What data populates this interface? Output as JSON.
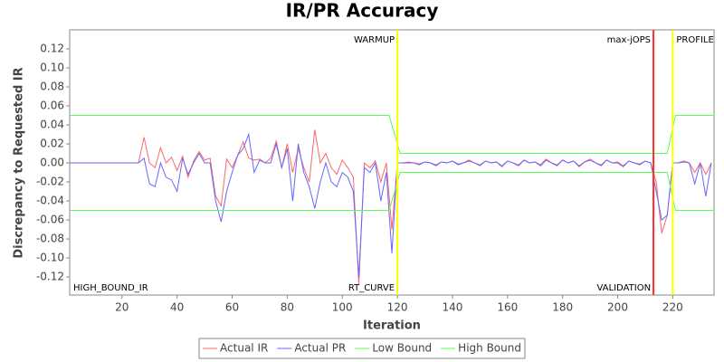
{
  "chart_data": {
    "type": "line",
    "title": "IR/PR Accuracy",
    "x_label": "Iteration",
    "y_label": "Discrepancy to Requested IR",
    "xlim": [
      1,
      235
    ],
    "ylim": [
      -0.139,
      0.14
    ],
    "xticks": [
      20,
      40,
      60,
      80,
      100,
      120,
      140,
      160,
      180,
      200,
      220
    ],
    "yticks": [
      -0.12,
      {
        "value": -0.1,
        "label": "-0.10"
      },
      -0.08,
      -0.06,
      -0.04,
      -0.02,
      {
        "value": 0,
        "label": "0.00"
      },
      0.02,
      0.04,
      0.06,
      0.08,
      {
        "value": 0.1,
        "label": "0.10"
      },
      0.12
    ],
    "legend": "bottom",
    "x": [
      1,
      26,
      28,
      30,
      32,
      34,
      36,
      38,
      40,
      42,
      44,
      46,
      48,
      50,
      52,
      54,
      56,
      58,
      60,
      62,
      64,
      66,
      68,
      70,
      72,
      74,
      76,
      78,
      80,
      82,
      84,
      86,
      88,
      90,
      92,
      94,
      96,
      98,
      100,
      102,
      104,
      106,
      108,
      110,
      112,
      114,
      116,
      118,
      120,
      122,
      124,
      126,
      128,
      130,
      132,
      134,
      136,
      138,
      140,
      142,
      144,
      146,
      148,
      150,
      152,
      154,
      156,
      158,
      160,
      162,
      164,
      166,
      168,
      170,
      172,
      174,
      176,
      178,
      180,
      182,
      184,
      186,
      188,
      190,
      192,
      194,
      196,
      198,
      200,
      202,
      204,
      206,
      208,
      210,
      212,
      214,
      216,
      218,
      220,
      222,
      224,
      226,
      228,
      230,
      232,
      234
    ],
    "series": [
      {
        "name": "Actual IR",
        "color": "#ff6666",
        "values": [
          0,
          0,
          0.027,
          0,
          -0.005,
          0.016,
          0,
          0.006,
          -0.008,
          0.007,
          -0.015,
          0.002,
          0.012,
          0.003,
          0.005,
          -0.035,
          -0.045,
          0.004,
          -0.005,
          0.008,
          0.022,
          0.005,
          0.003,
          0.004,
          0,
          0.005,
          0.023,
          -0.005,
          0.02,
          -0.01,
          0.015,
          -0.005,
          -0.02,
          0.035,
          0,
          0.01,
          -0.005,
          -0.012,
          0.003,
          -0.005,
          -0.015,
          -0.128,
          0,
          -0.005,
          0.002,
          -0.02,
          0,
          -0.07,
          0,
          0,
          0.001,
          0,
          -0.001,
          0.001,
          0,
          -0.002,
          0.001,
          0,
          0.002,
          -0.001,
          0,
          0.003,
          0,
          -0.002,
          0.002,
          0,
          0.001,
          -0.003,
          0.002,
          0,
          -0.002,
          0.003,
          0,
          0.001,
          -0.002,
          0.004,
          0,
          -0.002,
          0.003,
          0,
          0.002,
          -0.003,
          0.001,
          0.004,
          0,
          -0.002,
          0.003,
          0,
          0.001,
          -0.003,
          0.002,
          0,
          -0.001,
          0.002,
          0,
          -0.02,
          -0.074,
          -0.055,
          0,
          0,
          0.002,
          0,
          -0.01,
          0,
          -0.012,
          0
        ]
      },
      {
        "name": "Actual PR",
        "color": "#6666ff",
        "values": [
          0,
          0,
          0.005,
          -0.022,
          -0.025,
          0,
          -0.015,
          -0.018,
          -0.03,
          0.005,
          -0.012,
          0,
          0.01,
          0,
          0,
          -0.04,
          -0.062,
          -0.03,
          -0.01,
          0.008,
          0.015,
          0.03,
          -0.01,
          0.003,
          0,
          0,
          0.02,
          -0.005,
          0.015,
          -0.04,
          0.02,
          -0.01,
          -0.025,
          -0.048,
          -0.02,
          0,
          -0.02,
          -0.025,
          -0.01,
          -0.015,
          -0.03,
          -0.12,
          -0.005,
          -0.01,
          0,
          -0.04,
          -0.01,
          -0.095,
          0,
          0,
          0,
          0,
          -0.002,
          0.001,
          0,
          -0.003,
          0.001,
          0,
          0.002,
          -0.002,
          0,
          0.002,
          0,
          -0.003,
          0.002,
          0,
          0.001,
          -0.004,
          0.002,
          0,
          -0.003,
          0.003,
          0,
          0.001,
          -0.003,
          0.003,
          0,
          -0.003,
          0.003,
          0,
          0.002,
          -0.004,
          0.001,
          0.003,
          0,
          -0.003,
          0.003,
          0,
          0,
          -0.004,
          0.002,
          0,
          -0.002,
          0.002,
          0,
          -0.03,
          -0.06,
          -0.055,
          0,
          0,
          0.001,
          0,
          -0.022,
          0,
          -0.035,
          0
        ]
      },
      {
        "name": "Low Bound",
        "color": "#55ff55",
        "x": [
          1,
          117,
          121,
          218,
          221,
          235
        ],
        "values": [
          -0.05,
          -0.05,
          -0.01,
          -0.01,
          -0.05,
          -0.05
        ]
      },
      {
        "name": "High Bound",
        "color": "#55ff55",
        "x": [
          1,
          117,
          121,
          218,
          221,
          235
        ],
        "values": [
          0.05,
          0.05,
          0.01,
          0.01,
          0.05,
          0.05
        ]
      }
    ],
    "markers": [
      {
        "x": 1,
        "label": "HIGH_BOUND_IR",
        "place": "bottom"
      },
      {
        "x": 120,
        "color": "#ffff00",
        "label": "WARMUP",
        "place": "top"
      },
      {
        "x": 120,
        "color": "#ffff00",
        "label": "RT_CURVE",
        "place": "bottom"
      },
      {
        "x": 213,
        "color": "#ff3333",
        "label": "max-jOPS",
        "place": "top"
      },
      {
        "x": 213,
        "color": "#ff3333",
        "label": "VALIDATION",
        "place": "bottom"
      },
      {
        "x": 220,
        "color": "#ffff00",
        "label": "PROFILE",
        "place": "top"
      }
    ]
  }
}
